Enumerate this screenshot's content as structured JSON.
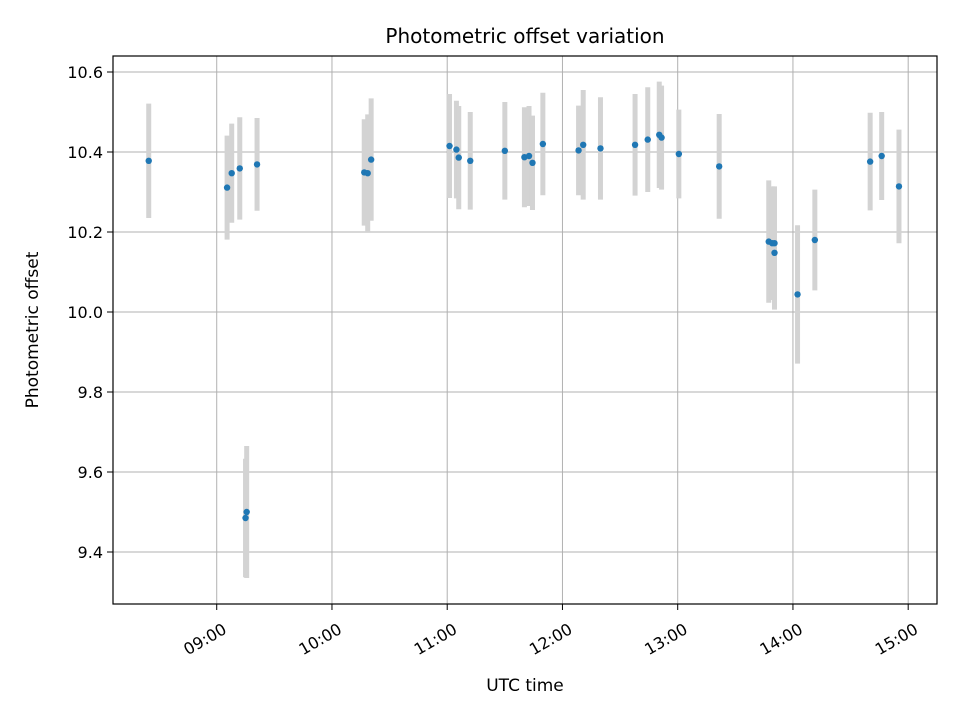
{
  "chart_data": {
    "type": "scatter",
    "title": "Photometric offset variation",
    "xlabel": "UTC time",
    "ylabel": "Photometric offset",
    "x_unit": "hours UTC",
    "xlim": [
      8.1,
      15.25
    ],
    "ylim": [
      9.27,
      10.64
    ],
    "x_ticks": [
      {
        "value": 9,
        "label": "09:00"
      },
      {
        "value": 10,
        "label": "10:00"
      },
      {
        "value": 11,
        "label": "11:00"
      },
      {
        "value": 12,
        "label": "12:00"
      },
      {
        "value": 13,
        "label": "13:00"
      },
      {
        "value": 14,
        "label": "14:00"
      },
      {
        "value": 15,
        "label": "15:00"
      }
    ],
    "y_ticks": [
      {
        "value": 9.4,
        "label": "9.4"
      },
      {
        "value": 9.6,
        "label": "9.6"
      },
      {
        "value": 9.8,
        "label": "9.8"
      },
      {
        "value": 10.0,
        "label": "10.0"
      },
      {
        "value": 10.2,
        "label": "10.2"
      },
      {
        "value": 10.4,
        "label": "10.4"
      },
      {
        "value": 10.6,
        "label": "10.6"
      }
    ],
    "grid": true,
    "colors": {
      "point": "#1f77b4",
      "errorbar": "#d3d3d3",
      "grid": "#b0b0b0"
    },
    "points": [
      {
        "x": 8.41,
        "y": 10.378,
        "err": 0.143
      },
      {
        "x": 9.09,
        "y": 10.311,
        "err": 0.13
      },
      {
        "x": 9.13,
        "y": 10.347,
        "err": 0.124
      },
      {
        "x": 9.2,
        "y": 10.359,
        "err": 0.128
      },
      {
        "x": 9.25,
        "y": 9.485,
        "err": 0.148
      },
      {
        "x": 9.26,
        "y": 9.5,
        "err": 0.165
      },
      {
        "x": 9.35,
        "y": 10.369,
        "err": 0.116
      },
      {
        "x": 10.28,
        "y": 10.349,
        "err": 0.133
      },
      {
        "x": 10.31,
        "y": 10.347,
        "err": 0.147
      },
      {
        "x": 10.34,
        "y": 10.381,
        "err": 0.153
      },
      {
        "x": 11.02,
        "y": 10.415,
        "err": 0.13
      },
      {
        "x": 11.08,
        "y": 10.406,
        "err": 0.122
      },
      {
        "x": 11.1,
        "y": 10.386,
        "err": 0.129
      },
      {
        "x": 11.2,
        "y": 10.378,
        "err": 0.122
      },
      {
        "x": 11.5,
        "y": 10.403,
        "err": 0.122
      },
      {
        "x": 11.67,
        "y": 10.387,
        "err": 0.125
      },
      {
        "x": 11.71,
        "y": 10.39,
        "err": 0.125
      },
      {
        "x": 11.74,
        "y": 10.373,
        "err": 0.118
      },
      {
        "x": 11.83,
        "y": 10.42,
        "err": 0.128
      },
      {
        "x": 12.14,
        "y": 10.404,
        "err": 0.112
      },
      {
        "x": 12.18,
        "y": 10.418,
        "err": 0.137
      },
      {
        "x": 12.33,
        "y": 10.409,
        "err": 0.128
      },
      {
        "x": 12.63,
        "y": 10.418,
        "err": 0.127
      },
      {
        "x": 12.74,
        "y": 10.431,
        "err": 0.131
      },
      {
        "x": 12.84,
        "y": 10.443,
        "err": 0.133
      },
      {
        "x": 12.86,
        "y": 10.436,
        "err": 0.13
      },
      {
        "x": 13.01,
        "y": 10.395,
        "err": 0.111
      },
      {
        "x": 13.36,
        "y": 10.364,
        "err": 0.131
      },
      {
        "x": 13.79,
        "y": 10.176,
        "err": 0.153
      },
      {
        "x": 13.82,
        "y": 10.172,
        "err": 0.142
      },
      {
        "x": 13.84,
        "y": 10.148,
        "err": 0.142
      },
      {
        "x": 13.84,
        "y": 10.172,
        "err": 0.142
      },
      {
        "x": 14.04,
        "y": 10.044,
        "err": 0.173
      },
      {
        "x": 14.19,
        "y": 10.18,
        "err": 0.126
      },
      {
        "x": 14.67,
        "y": 10.376,
        "err": 0.122
      },
      {
        "x": 14.77,
        "y": 10.39,
        "err": 0.11
      },
      {
        "x": 14.92,
        "y": 10.314,
        "err": 0.142
      }
    ]
  }
}
